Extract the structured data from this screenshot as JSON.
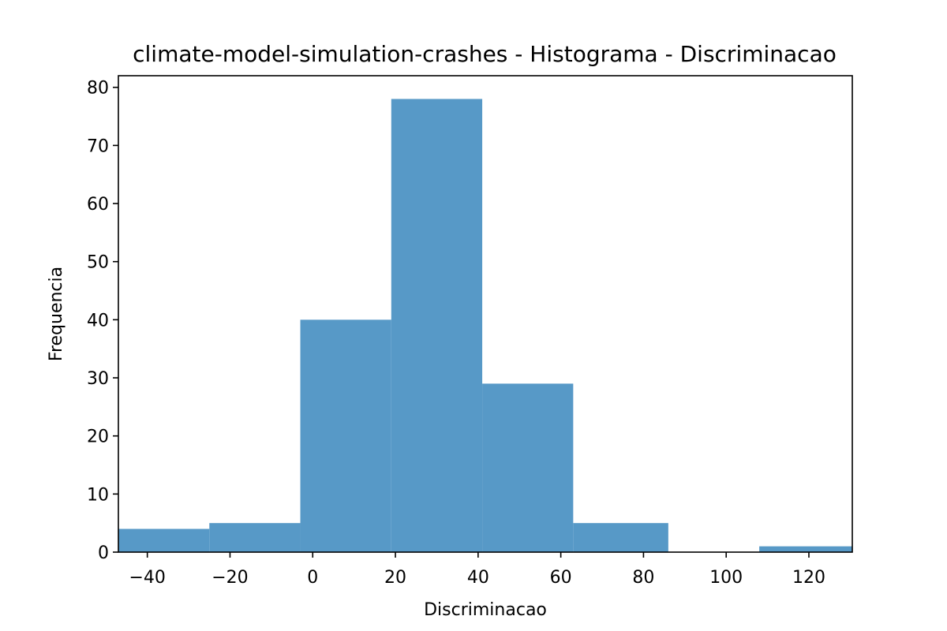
{
  "chart_data": {
    "type": "bar",
    "title": "climate-model-simulation-crashes - Histograma - Discriminacao",
    "xlabel": "Discriminacao",
    "ylabel": "Frequencia",
    "xlim": [
      -47,
      130.5
    ],
    "ylim": [
      0,
      82
    ],
    "bin_edges": [
      -47,
      -25,
      -3,
      19,
      41,
      63,
      86,
      108,
      130.5
    ],
    "values": [
      4,
      5,
      40,
      78,
      29,
      5,
      0,
      1
    ],
    "xticks": [
      -40,
      -20,
      0,
      20,
      40,
      60,
      80,
      100,
      120
    ],
    "xtick_labels": [
      "−40",
      "−20",
      "0",
      "20",
      "40",
      "60",
      "80",
      "100",
      "120"
    ],
    "yticks": [
      0,
      10,
      20,
      30,
      40,
      50,
      60,
      70,
      80
    ],
    "ytick_labels": [
      "0",
      "10",
      "20",
      "30",
      "40",
      "50",
      "60",
      "70",
      "80"
    ],
    "bar_color": "#5799c7",
    "grid": false,
    "legend": "none"
  }
}
